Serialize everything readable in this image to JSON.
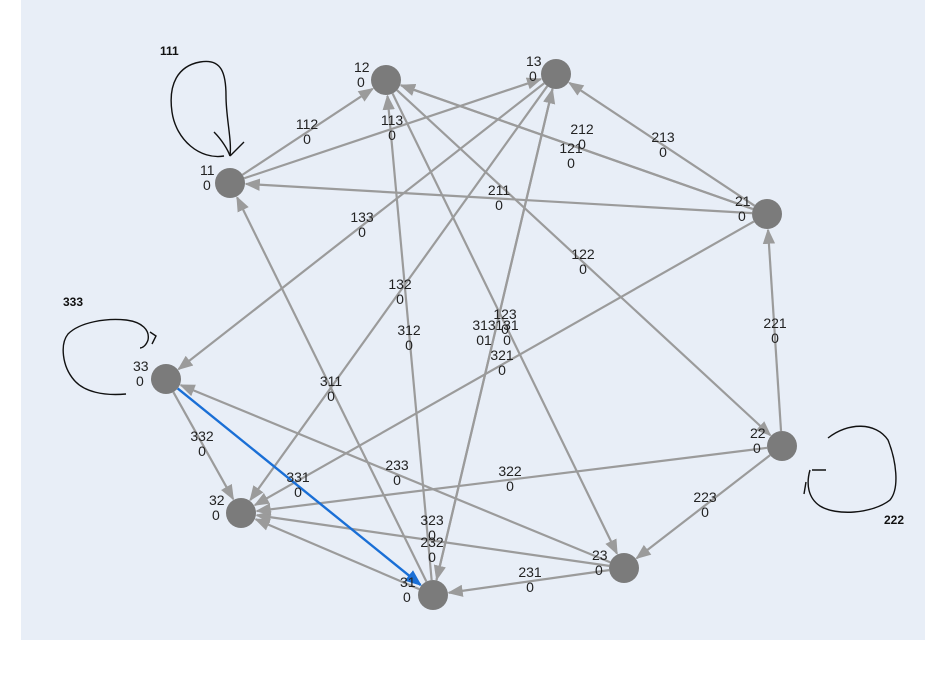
{
  "nodes": [
    {
      "id": "11",
      "label": "11",
      "value": "0"
    },
    {
      "id": "12",
      "label": "12",
      "value": "0"
    },
    {
      "id": "13",
      "label": "13",
      "value": "0"
    },
    {
      "id": "21",
      "label": "21",
      "value": "0"
    },
    {
      "id": "22",
      "label": "22",
      "value": "0"
    },
    {
      "id": "23",
      "label": "23",
      "value": "0"
    },
    {
      "id": "31",
      "label": "31",
      "value": "0"
    },
    {
      "id": "32",
      "label": "32",
      "value": "0"
    },
    {
      "id": "33",
      "label": "33",
      "value": "0"
    }
  ],
  "edges": [
    {
      "id": "112",
      "from": "11",
      "to": "12",
      "label": "112",
      "value": "0"
    },
    {
      "id": "113",
      "from": "11",
      "to": "13",
      "label": "113",
      "value": "0"
    },
    {
      "id": "121",
      "from": "21",
      "to": "12",
      "label": "121",
      "value": "0"
    },
    {
      "id": "122",
      "from": "12",
      "to": "22",
      "label": "122",
      "value": "0"
    },
    {
      "id": "123",
      "from": "12",
      "to": "23",
      "label": "123",
      "value": "0"
    },
    {
      "id": "131",
      "from": "13",
      "to": "31",
      "label": "131",
      "value": "0"
    },
    {
      "id": "132",
      "from": "13",
      "to": "32",
      "label": "132",
      "value": "0"
    },
    {
      "id": "133",
      "from": "13",
      "to": "33",
      "label": "133",
      "value": "0"
    },
    {
      "id": "211",
      "from": "21",
      "to": "11",
      "label": "211",
      "value": "0"
    },
    {
      "id": "212",
      "from": "21",
      "to": "12",
      "label": "212",
      "value": "0"
    },
    {
      "id": "213",
      "from": "21",
      "to": "13",
      "label": "213",
      "value": "0"
    },
    {
      "id": "221",
      "from": "22",
      "to": "21",
      "label": "221",
      "value": "0"
    },
    {
      "id": "223",
      "from": "22",
      "to": "23",
      "label": "223",
      "value": "0"
    },
    {
      "id": "231",
      "from": "23",
      "to": "31",
      "label": "231",
      "value": "0"
    },
    {
      "id": "232",
      "from": "23",
      "to": "32",
      "label": "232",
      "value": "0"
    },
    {
      "id": "233",
      "from": "23",
      "to": "33",
      "label": "233",
      "value": "0"
    },
    {
      "id": "311",
      "from": "31",
      "to": "11",
      "label": "311",
      "value": "0"
    },
    {
      "id": "312",
      "from": "31",
      "to": "12",
      "label": "312",
      "value": "0"
    },
    {
      "id": "313",
      "from": "31",
      "to": "13",
      "label": "313",
      "value": "01"
    },
    {
      "id": "321",
      "from": "21",
      "to": "32",
      "label": "321",
      "value": "0"
    },
    {
      "id": "322",
      "from": "22",
      "to": "32",
      "label": "322",
      "value": "0"
    },
    {
      "id": "323",
      "from": "31",
      "to": "32",
      "label": "323",
      "value": "0"
    },
    {
      "id": "331",
      "from": "33",
      "to": "31",
      "label": "331",
      "value": "0",
      "highlight": true
    },
    {
      "id": "332",
      "from": "33",
      "to": "32",
      "label": "332",
      "value": "0"
    }
  ],
  "self_loops": [
    {
      "id": "111",
      "node": "11",
      "label": "111"
    },
    {
      "id": "222",
      "node": "22",
      "label": "222"
    },
    {
      "id": "333",
      "node": "33",
      "label": "333"
    }
  ],
  "colors": {
    "background": "#e8eef7",
    "node": "#7b7b7b",
    "edge": "#9b9b9b",
    "highlight_edge": "#1a6fd6",
    "annotation": "#111111"
  }
}
